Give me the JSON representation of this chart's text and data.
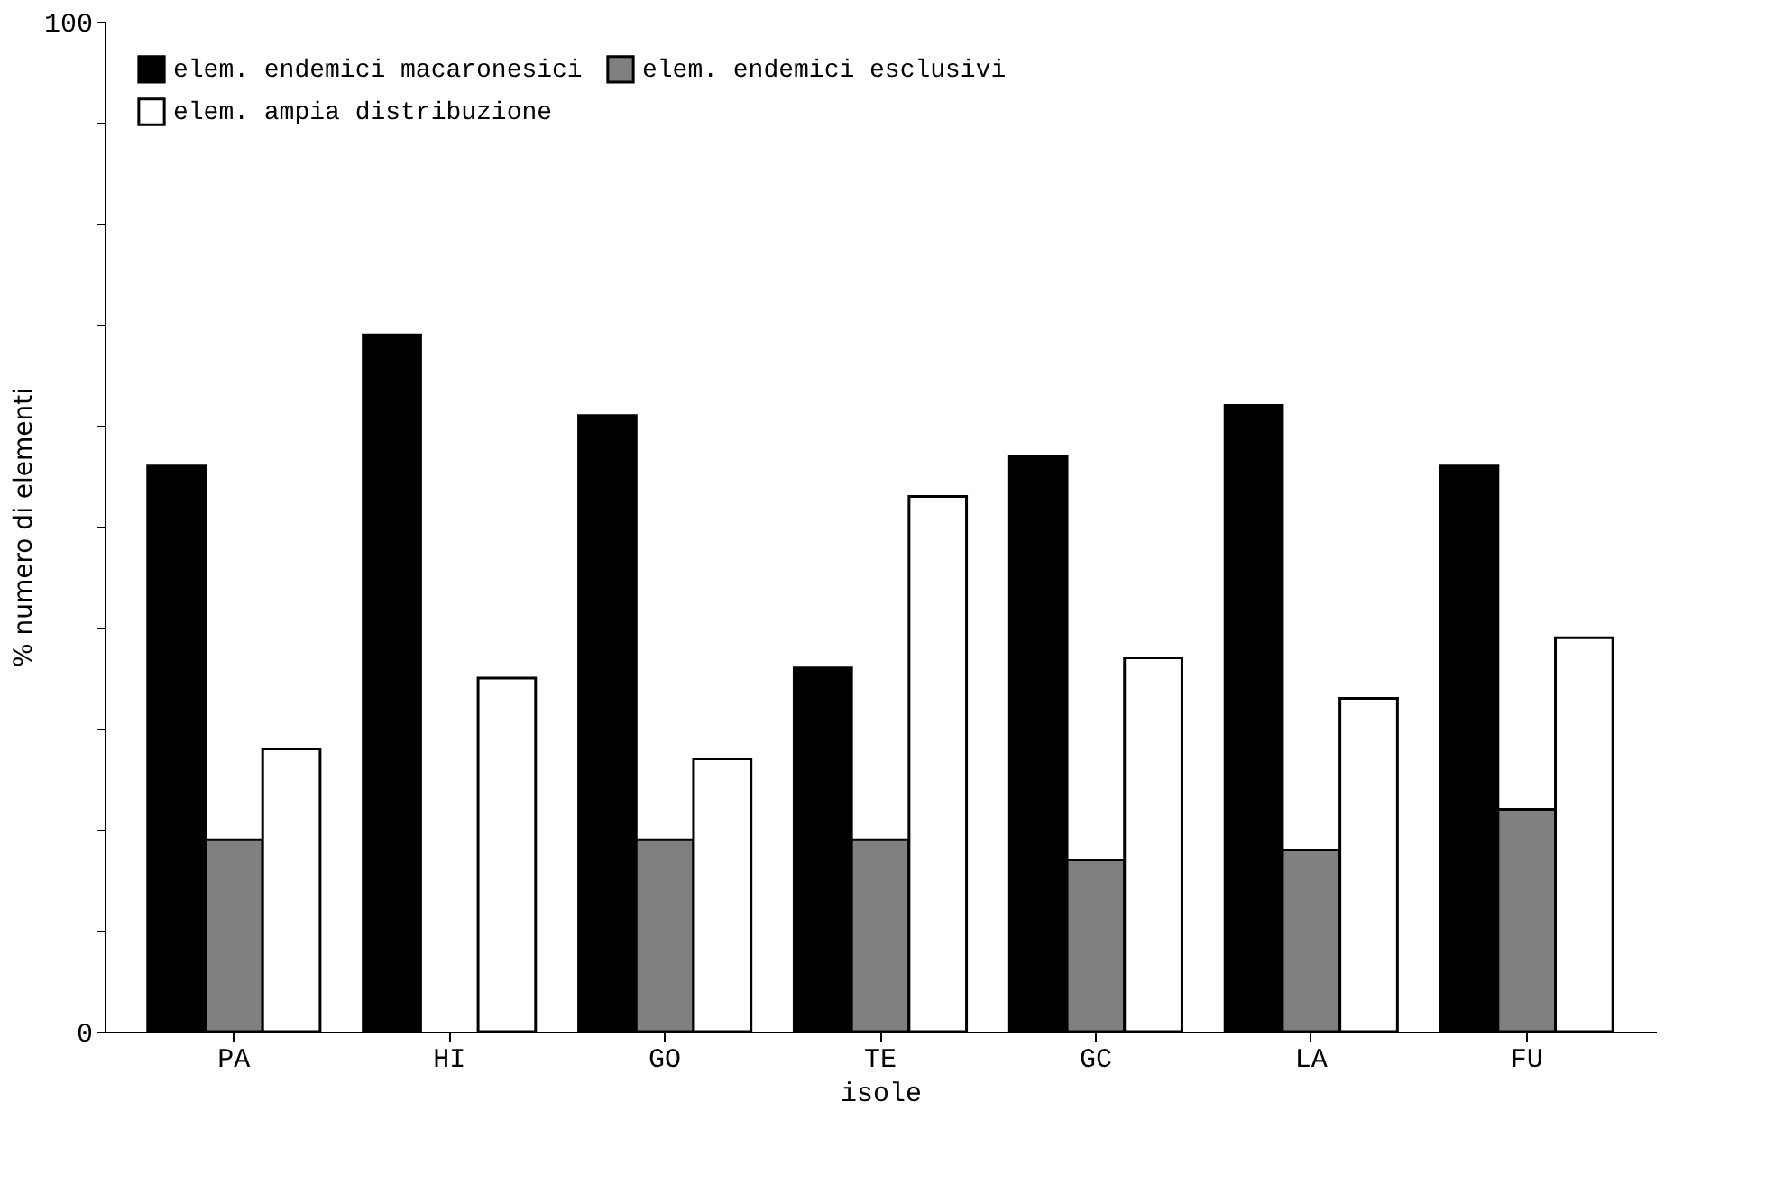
{
  "chart_data": {
    "type": "bar",
    "xlabel": "isole",
    "ylabel": "% numero di elementi",
    "categories": [
      "PA",
      "HI",
      "GO",
      "TE",
      "GC",
      "LA",
      "FU"
    ],
    "series": [
      {
        "name": "elem. endemici macaronesici",
        "color": "#000000",
        "values": [
          56,
          69,
          61,
          36,
          57,
          62,
          56
        ]
      },
      {
        "name": "elem. endemici esclusivi",
        "color": "#808080",
        "values": [
          19,
          null,
          19,
          19,
          17,
          18,
          22
        ]
      },
      {
        "name": "elem. ampia distribuzione",
        "color": "#ffffff",
        "values": [
          28,
          35,
          27,
          53,
          37,
          33,
          39
        ]
      }
    ],
    "ylim": [
      0,
      100
    ],
    "yticks": [
      0,
      {
        "value": 10,
        "label": null
      },
      {
        "value": 20,
        "label": null
      },
      {
        "value": 30,
        "label": null
      },
      {
        "value": 40,
        "label": null
      },
      {
        "value": 50,
        "label": null
      },
      {
        "value": 60,
        "label": null
      },
      {
        "value": 70,
        "label": null
      },
      {
        "value": 80,
        "label": null
      },
      {
        "value": 90,
        "label": null
      },
      100
    ],
    "grid": false,
    "legend": "top left"
  }
}
